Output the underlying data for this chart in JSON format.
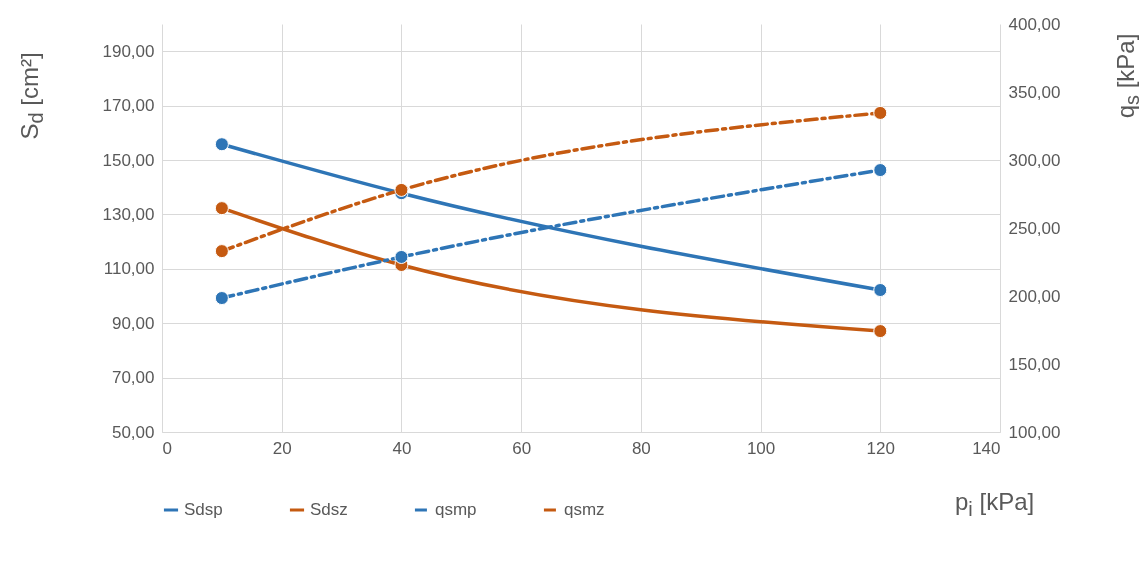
{
  "chart_data": {
    "type": "line",
    "xlabel": "p$_{i}$ [kPa]",
    "ylabel": "S$_{d}$ [cm²]",
    "y2label": "q$_{s}$ [kPa]",
    "xlim": [
      0,
      140
    ],
    "xticks": [
      0,
      20,
      40,
      60,
      80,
      100,
      120,
      140
    ],
    "ylim": [
      50,
      200
    ],
    "yticks": [
      {
        "value": 50,
        "label": "50,00"
      },
      {
        "value": 70,
        "label": "70,00"
      },
      {
        "value": 90,
        "label": "90,00"
      },
      {
        "value": 110,
        "label": "110,00"
      },
      {
        "value": 130,
        "label": "130,00"
      },
      {
        "value": 150,
        "label": "150,00"
      },
      {
        "value": 170,
        "label": "170,00"
      },
      {
        "value": 190,
        "label": "190,00"
      }
    ],
    "y2lim": [
      100,
      400
    ],
    "y2ticks": [
      {
        "value": 100,
        "label": "100,00"
      },
      {
        "value": 150,
        "label": "150,00"
      },
      {
        "value": 200,
        "label": "200,00"
      },
      {
        "value": 250,
        "label": "250,00"
      },
      {
        "value": 300,
        "label": "300,00"
      },
      {
        "value": 350,
        "label": "350,00"
      },
      {
        "value": 400,
        "label": "400,00"
      }
    ],
    "x": [
      10,
      40,
      120
    ],
    "series": [
      {
        "name": "Sdsp",
        "color": "#2e75b6",
        "values": [
          155.8,
          137.8,
          102.2
        ],
        "line_style": "solid"
      },
      {
        "name": "Sdsz",
        "color": "#c55a11",
        "values": [
          132.3,
          111.4,
          87.1
        ],
        "line_style": "solid"
      },
      {
        "name": "qsmp",
        "color": "#2e75b6",
        "values": [
          198.5,
          228.7,
          292.6
        ],
        "axis": "y2",
        "line_style": "dashed"
      },
      {
        "name": "qsmz",
        "color": "#c55a11",
        "values": [
          233,
          278,
          334.6
        ],
        "axis": "y2",
        "line_style": "dashed"
      }
    ],
    "grid": true,
    "legend": "bottom",
    "marker": "circle"
  }
}
